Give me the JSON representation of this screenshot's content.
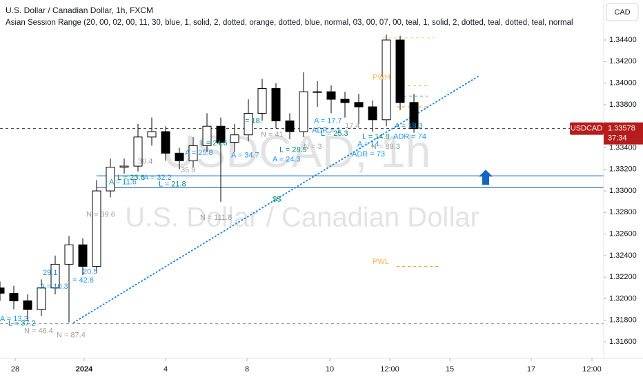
{
  "chart_data": {
    "type": "candlestick",
    "title": "U.S. Dollar / Canadian Dollar, 1h, FXCM",
    "indicator": "Asian Session Range (20, 00, 02, 00, 11, 30, blue, 1, solid, 2, dotted, orange, dotted, blue, normal, 03, 00, 07, 00, teal, 1, solid, 2, dotted, teal, dotted, teal, normal",
    "currency": "CAD",
    "watermark": "USDCAD, 1h",
    "watermark_name": "U.S. Dollar / Canadian Dollar",
    "symbol": "USDCAD",
    "last_price": 1.33578,
    "countdown": "37:34",
    "up_color": "#ffffff",
    "down_color": "#000000",
    "x": [
      0,
      4,
      8,
      12,
      16,
      20,
      24,
      28,
      32,
      36,
      40,
      44,
      48,
      52,
      56,
      60,
      64,
      68,
      72,
      76,
      80,
      84,
      88,
      92,
      96,
      100,
      104,
      108,
      112,
      116,
      120
    ],
    "open": [
      1.321,
      1.3205,
      1.3198,
      1.319,
      1.321,
      1.3232,
      1.325,
      1.323,
      1.33,
      1.3322,
      1.3323,
      1.335,
      1.3355,
      1.3335,
      1.3328,
      1.3342,
      1.336,
      1.3345,
      1.3352,
      1.3372,
      1.3395,
      1.3365,
      1.3355,
      1.3392,
      1.3392,
      1.3385,
      1.3382,
      1.3378,
      1.3366,
      1.344,
      1.3382
    ],
    "high": [
      1.3216,
      1.3212,
      1.3204,
      1.3218,
      1.324,
      1.3258,
      1.3256,
      1.331,
      1.333,
      1.333,
      1.3362,
      1.3368,
      1.336,
      1.334,
      1.335,
      1.3372,
      1.3368,
      1.3362,
      1.3385,
      1.3404,
      1.34,
      1.3372,
      1.341,
      1.3402,
      1.3398,
      1.3392,
      1.339,
      1.3384,
      1.3445,
      1.3444,
      1.339
    ],
    "low": [
      1.3198,
      1.319,
      1.318,
      1.3184,
      1.3204,
      1.3178,
      1.3222,
      1.3224,
      1.3294,
      1.3316,
      1.3318,
      1.3342,
      1.3328,
      1.332,
      1.3322,
      1.3336,
      1.329,
      1.3336,
      1.3346,
      1.3365,
      1.3358,
      1.3348,
      1.335,
      1.3378,
      1.3372,
      1.3368,
      1.3362,
      1.3355,
      1.336,
      1.3375,
      1.3354
    ],
    "close": [
      1.3205,
      1.3198,
      1.319,
      1.321,
      1.3232,
      1.325,
      1.323,
      1.33,
      1.3322,
      1.3323,
      1.335,
      1.3355,
      1.3335,
      1.3328,
      1.3342,
      1.336,
      1.3345,
      1.3352,
      1.3372,
      1.3395,
      1.3365,
      1.3355,
      1.3392,
      1.3392,
      1.3385,
      1.3382,
      1.3378,
      1.3366,
      1.344,
      1.3382,
      1.33578
    ],
    "xlim": [
      0,
      175
    ],
    "ylim": [
      1.31447,
      1.34771
    ],
    "xticks": [
      {
        "value": 4.4,
        "label": "28"
      },
      {
        "value": 24.4,
        "label": "2024"
      },
      {
        "value": 48,
        "label": "4"
      },
      {
        "value": 71.6,
        "label": "8"
      },
      {
        "value": 95.6,
        "label": "10"
      },
      {
        "value": 113,
        "label": "12:00"
      },
      {
        "value": 130.4,
        "label": "15"
      },
      {
        "value": 154,
        "label": "17"
      },
      {
        "value": 171.6,
        "label": "12:00"
      }
    ],
    "yticks": [
      {
        "value": 1.316,
        "label": "1.31600"
      },
      {
        "value": 1.318,
        "label": "1.31800"
      },
      {
        "value": 1.32,
        "label": "1.32000"
      },
      {
        "value": 1.322,
        "label": "1.32200"
      },
      {
        "value": 1.324,
        "label": "1.32400"
      },
      {
        "value": 1.326,
        "label": "1.32600"
      },
      {
        "value": 1.328,
        "label": "1.32800"
      },
      {
        "value": 1.33,
        "label": "1.33000"
      },
      {
        "value": 1.332,
        "label": "1.33200"
      },
      {
        "value": 1.334,
        "label": "1.33400"
      },
      {
        "value": 1.338,
        "label": "1.33800"
      },
      {
        "value": 1.34,
        "label": "1.34000"
      },
      {
        "value": 1.342,
        "label": "1.34200"
      },
      {
        "value": 1.344,
        "label": "1.34400"
      }
    ],
    "hlines": [
      {
        "y": 1.3314,
        "x": [
          28,
          175
        ],
        "color": "#1565c0",
        "style": "solid"
      },
      {
        "y": 1.3303,
        "x": [
          28,
          175
        ],
        "color": "#1565c0",
        "style": "solid"
      },
      {
        "y": 1.3398,
        "x": [
          115,
          124
        ],
        "color": "#ff9800",
        "style": "dashed"
      },
      {
        "y": 1.3378,
        "x": [
          115,
          124
        ],
        "color": "#ff9800",
        "style": "dashed"
      },
      {
        "y": 1.323,
        "x": [
          115,
          127
        ],
        "color": "#ff9800",
        "style": "dashed"
      },
      {
        "y": 1.3388,
        "x": [
          117,
          124
        ],
        "color": "#26a69a",
        "style": "dashed"
      },
      {
        "y": 1.3442,
        "x": [
          111,
          126
        ],
        "color": "#ffcc80",
        "style": "dashed"
      },
      {
        "y": 1.3177,
        "x": [
          0,
          175
        ],
        "color": "#9e9e9e",
        "style": "dashed"
      },
      {
        "y": 1.33578,
        "x": [
          0,
          175
        ],
        "color": "#333333",
        "style": "dashed"
      }
    ],
    "trendline": {
      "x": [
        21.4,
        139
      ],
      "y": [
        1.3178,
        1.3407
      ],
      "color": "#1e88e5"
    },
    "arrow": {
      "x": 140.8,
      "y": 1.3312,
      "color": "#1565c0"
    },
    "annotations": [
      {
        "text": "A = 13.3",
        "x": 0,
        "y": 1.3181,
        "color": "#2196f3"
      },
      {
        "text": "L = 37.2",
        "x": 2.4,
        "y": 1.3177,
        "color": "#00897b"
      },
      {
        "text": "N = 46.4",
        "x": 7,
        "y": 1.317,
        "color": "#9e9e9e"
      },
      {
        "text": "N = 87.4",
        "x": 16.4,
        "y": 1.3166,
        "color": "#9e9e9e"
      },
      {
        "text": "A = 10.3",
        "x": 11.6,
        "y": 1.3211,
        "color": "#2196f3"
      },
      {
        "text": "29.1",
        "x": 12.4,
        "y": 1.3224,
        "color": "#2196f3"
      },
      {
        "text": "20.5",
        "x": 24,
        "y": 1.3225,
        "color": "#2196f3"
      },
      {
        "text": "= 42.8",
        "x": 21,
        "y": 1.3217,
        "color": "#2196f3"
      },
      {
        "text": "N = 39.6",
        "x": 25,
        "y": 1.3278,
        "color": "#9e9e9e"
      },
      {
        "text": "A = 11.6",
        "x": 31.6,
        "y": 1.3308,
        "color": "#2196f3"
      },
      {
        "text": "L = 23.6",
        "x": 34,
        "y": 1.3312,
        "color": "#00897b"
      },
      {
        "text": "A = 32.2",
        "x": 41.6,
        "y": 1.3312,
        "color": "#2196f3"
      },
      {
        "text": "L = 21.8",
        "x": 46,
        "y": 1.3306,
        "color": "#00897b"
      },
      {
        "text": "30.4",
        "x": 40,
        "y": 1.3327,
        "color": "#9e9e9e"
      },
      {
        "text": "35.9",
        "x": 52.4,
        "y": 1.3319,
        "color": "#9e9e9e"
      },
      {
        "text": "L = 24.6",
        "x": 58,
        "y": 1.3344,
        "color": "#00897b"
      },
      {
        "text": "A = 25.8",
        "x": 53.6,
        "y": 1.3335,
        "color": "#2196f3"
      },
      {
        "text": "A = 34.7",
        "x": 67,
        "y": 1.3333,
        "color": "#2196f3"
      },
      {
        "text": "N = 111.8",
        "x": 58,
        "y": 1.3275,
        "color": "#9e9e9e"
      },
      {
        "text": "$$",
        "x": 79,
        "y": 1.3292,
        "color": "#00897b"
      },
      {
        "text": "= 18.",
        "x": 71,
        "y": 1.3365,
        "color": "#00897b"
      },
      {
        "text": "N = 41",
        "x": 75.6,
        "y": 1.3352,
        "color": "#9e9e9e"
      },
      {
        "text": "L = 28.9",
        "x": 81,
        "y": 1.3338,
        "color": "#00897b"
      },
      {
        "text": "A = 24.3",
        "x": 79,
        "y": 1.3329,
        "color": "#2196f3"
      },
      {
        "text": "N = 3",
        "x": 88,
        "y": 1.3341,
        "color": "#9e9e9e"
      },
      {
        "text": "A = 17.7",
        "x": 91,
        "y": 1.3365,
        "color": "#2196f3"
      },
      {
        "text": "ADR = 1",
        "x": 90.4,
        "y": 1.3356,
        "color": "#2196f3"
      },
      {
        "text": "L = 25.3",
        "x": 93,
        "y": 1.3353,
        "color": "#00897b"
      },
      {
        "text": "17.4",
        "x": 100,
        "y": 1.336,
        "color": "#9e9e9e"
      },
      {
        "text": "A = 14",
        "x": 103.6,
        "y": 1.3343,
        "color": "#2196f3"
      },
      {
        "text": "L = 14.8",
        "x": 105,
        "y": 1.335,
        "color": "#00897b"
      },
      {
        "text": "ADR = 73",
        "x": 102,
        "y": 1.3334,
        "color": "#2196f3"
      },
      {
        "text": "N = 89.3",
        "x": 107.6,
        "y": 1.3341,
        "color": "#9e9e9e"
      },
      {
        "text": "A = 18.3",
        "x": 114.4,
        "y": 1.336,
        "color": "#2196f3"
      },
      {
        "text": "ADR = 74",
        "x": 114,
        "y": 1.335,
        "color": "#2196f3"
      },
      {
        "text": "PWH",
        "x": 108,
        "y": 1.3405,
        "color": "#ffb74d"
      },
      {
        "text": "PWL",
        "x": 108,
        "y": 1.3234,
        "color": "#ffb74d"
      }
    ]
  }
}
